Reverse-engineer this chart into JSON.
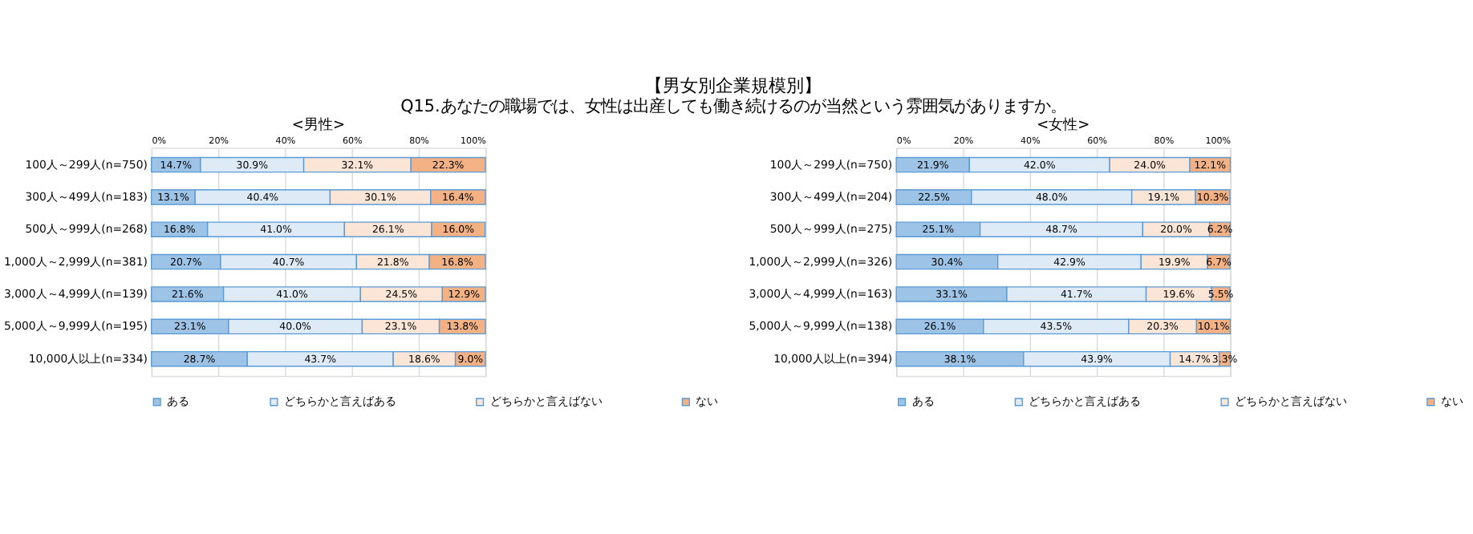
{
  "chart_data": [
    {
      "type": "bar",
      "orientation": "horizontal",
      "stacked": true,
      "title": "<男性>",
      "annotations": [
        "【男女別企業規模別】",
        "Q15.あなたの職場では、女性は出産しても働き続けるのが当然という雰囲気がありますか。"
      ],
      "categories": [
        "100人～299人(n=750)",
        "300人～499人(n=183)",
        "500人～999人(n=268)",
        "1,000人～2,999人(n=381)",
        "3,000人～4,999人(n=139)",
        "5,000人～9,999人(n=195)",
        "10,000人以上(n=334)"
      ],
      "series": [
        {
          "name": "ある",
          "color": "#9dc3e6",
          "values": [
            14.7,
            13.1,
            16.8,
            20.7,
            21.6,
            23.1,
            28.7
          ],
          "value_labels": [
            "14.7%",
            "13.1%",
            "16.8%",
            "20.7%",
            "21.6%",
            "23.1%",
            "28.7%"
          ]
        },
        {
          "name": "どちらかと言えばある",
          "color": "#deebf7",
          "values": [
            30.9,
            40.4,
            41.0,
            40.7,
            41.0,
            40.0,
            43.7
          ],
          "value_labels": [
            "30.9%",
            "40.4%",
            "41.0%",
            "40.7%",
            "41.0%",
            "40.0%",
            "43.7%"
          ]
        },
        {
          "name": "どちらかと言えばない",
          "color": "#fbe5d6",
          "values": [
            32.1,
            30.1,
            26.1,
            21.8,
            24.5,
            23.1,
            18.6
          ],
          "value_labels": [
            "32.1%",
            "30.1%",
            "26.1%",
            "21.8%",
            "24.5%",
            "23.1%",
            "18.6%"
          ]
        },
        {
          "name": "ない",
          "color": "#f4b183",
          "values": [
            22.3,
            16.4,
            16.0,
            16.8,
            12.9,
            13.8,
            9.0
          ],
          "value_labels": [
            "22.3%",
            "16.4%",
            "16.0%",
            "16.8%",
            "12.9%",
            "13.8%",
            "9.0%"
          ]
        }
      ],
      "xlim": [
        0,
        100
      ],
      "xticks": [
        {
          "value": 0,
          "label": "0%"
        },
        {
          "value": 20,
          "label": "20%"
        },
        {
          "value": 40,
          "label": "40%"
        },
        {
          "value": 60,
          "label": "60%"
        },
        {
          "value": 80,
          "label": "80%"
        },
        {
          "value": 100,
          "label": "100%"
        }
      ],
      "grid": "x",
      "legend": "bottom"
    },
    {
      "type": "bar",
      "orientation": "horizontal",
      "stacked": true,
      "title": "<女性>",
      "categories": [
        "100人～299人(n=750)",
        "300人～499人(n=204)",
        "500人～999人(n=275)",
        "1,000人～2,999人(n=326)",
        "3,000人～4,999人(n=163)",
        "5,000人～9,999人(n=138)",
        "10,000人以上(n=394)"
      ],
      "series": [
        {
          "name": "ある",
          "color": "#9dc3e6",
          "values": [
            21.9,
            22.5,
            25.1,
            30.4,
            33.1,
            26.1,
            38.1
          ],
          "value_labels": [
            "21.9%",
            "22.5%",
            "25.1%",
            "30.4%",
            "33.1%",
            "26.1%",
            "38.1%"
          ]
        },
        {
          "name": "どちらかと言えばある",
          "color": "#deebf7",
          "values": [
            42.0,
            48.0,
            48.7,
            42.9,
            41.7,
            43.5,
            43.9
          ],
          "value_labels": [
            "42.0%",
            "48.0%",
            "48.7%",
            "42.9%",
            "41.7%",
            "43.5%",
            "43.9%"
          ]
        },
        {
          "name": "どちらかと言えばない",
          "color": "#fbe5d6",
          "values": [
            24.0,
            19.1,
            20.0,
            19.9,
            19.6,
            20.3,
            14.7
          ],
          "value_labels": [
            "24.0%",
            "19.1%",
            "20.0%",
            "19.9%",
            "19.6%",
            "20.3%",
            "14.7%"
          ]
        },
        {
          "name": "ない",
          "color": "#f4b183",
          "values": [
            12.1,
            10.3,
            6.2,
            6.7,
            5.5,
            10.1,
            3.3
          ],
          "value_labels": [
            "12.1%",
            "10.3%",
            "6.2%",
            "6.7%",
            "5.5%",
            "10.1%",
            "3.3%"
          ]
        }
      ],
      "xlim": [
        0,
        100
      ],
      "xticks": [
        {
          "value": 0,
          "label": "0%"
        },
        {
          "value": 20,
          "label": "20%"
        },
        {
          "value": 40,
          "label": "40%"
        },
        {
          "value": 60,
          "label": "60%"
        },
        {
          "value": 80,
          "label": "80%"
        },
        {
          "value": 100,
          "label": "100%"
        }
      ],
      "grid": "x",
      "legend": "bottom"
    }
  ]
}
